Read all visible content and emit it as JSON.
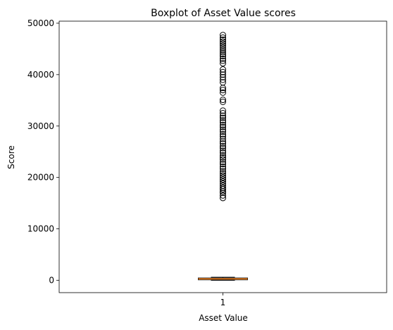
{
  "chart_data": {
    "type": "box",
    "title": "Boxplot of Asset Value scores",
    "xlabel": "Asset Value",
    "ylabel": "Score",
    "categories": [
      "1"
    ],
    "ylim": [
      -2400,
      50400
    ],
    "yticks": [
      0,
      10000,
      20000,
      30000,
      40000,
      50000
    ],
    "yticklabels": [
      "0",
      "10000",
      "20000",
      "30000",
      "40000",
      "50000"
    ],
    "box": {
      "whisker_low": 0,
      "q1": 100,
      "median": 280,
      "q3": 450,
      "whisker_high": 600
    },
    "outliers": [
      16000,
      16500,
      17000,
      17300,
      17700,
      18000,
      18400,
      18800,
      19200,
      19600,
      20000,
      20400,
      20800,
      21200,
      21700,
      22100,
      22600,
      23000,
      23500,
      23900,
      24300,
      24800,
      25200,
      25700,
      26100,
      26600,
      27000,
      27500,
      28000,
      28400,
      28900,
      29300,
      29800,
      30200,
      30700,
      31100,
      31600,
      32000,
      32500,
      33000,
      34700,
      35100,
      36500,
      37000,
      37400,
      38500,
      39000,
      39500,
      40000,
      40500,
      41000,
      42200,
      42700,
      43100,
      43600,
      44000,
      44400,
      44800,
      45200,
      45600,
      46000,
      46400,
      46800,
      47200,
      47700
    ],
    "colors": {
      "box": "#000000",
      "median": "#ff7f0e",
      "outlier": "#000000"
    }
  }
}
